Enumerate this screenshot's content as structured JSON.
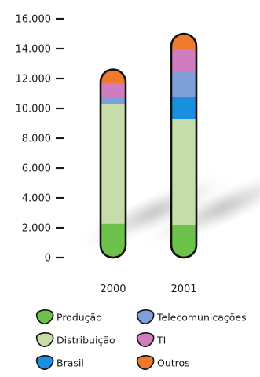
{
  "chart_data": {
    "type": "bar",
    "stacked": true,
    "categories": [
      "2000",
      "2001"
    ],
    "ylim": [
      0,
      16000
    ],
    "yticks": [
      {
        "value": 0,
        "label": "0"
      },
      {
        "value": 2000,
        "label": "2.000"
      },
      {
        "value": 4000,
        "label": "4.000"
      },
      {
        "value": 6000,
        "label": "6.000"
      },
      {
        "value": 8000,
        "label": "8.000"
      },
      {
        "value": 10000,
        "label": "10.000"
      },
      {
        "value": 12000,
        "label": "12.000"
      },
      {
        "value": 14000,
        "label": "14.000"
      },
      {
        "value": 16000,
        "label": "16.000"
      }
    ],
    "series": [
      {
        "name": "Produção",
        "color": "#6cc24a",
        "values": [
          2300,
          2200
        ]
      },
      {
        "name": "Distribuição",
        "color": "#c6dca9",
        "values": [
          8000,
          7100
        ]
      },
      {
        "name": "Brasil",
        "color": "#1a8fe0",
        "values": [
          0,
          1500
        ]
      },
      {
        "name": "Telecomunicações",
        "color": "#7f9fd8",
        "values": [
          500,
          1700
        ]
      },
      {
        "name": "TI",
        "color": "#d27cc0",
        "values": [
          900,
          1500
        ]
      },
      {
        "name": "Outros",
        "color": "#ef7a2c",
        "values": [
          900,
          1000
        ]
      }
    ],
    "legend_placement": "bottom",
    "grid": false
  }
}
